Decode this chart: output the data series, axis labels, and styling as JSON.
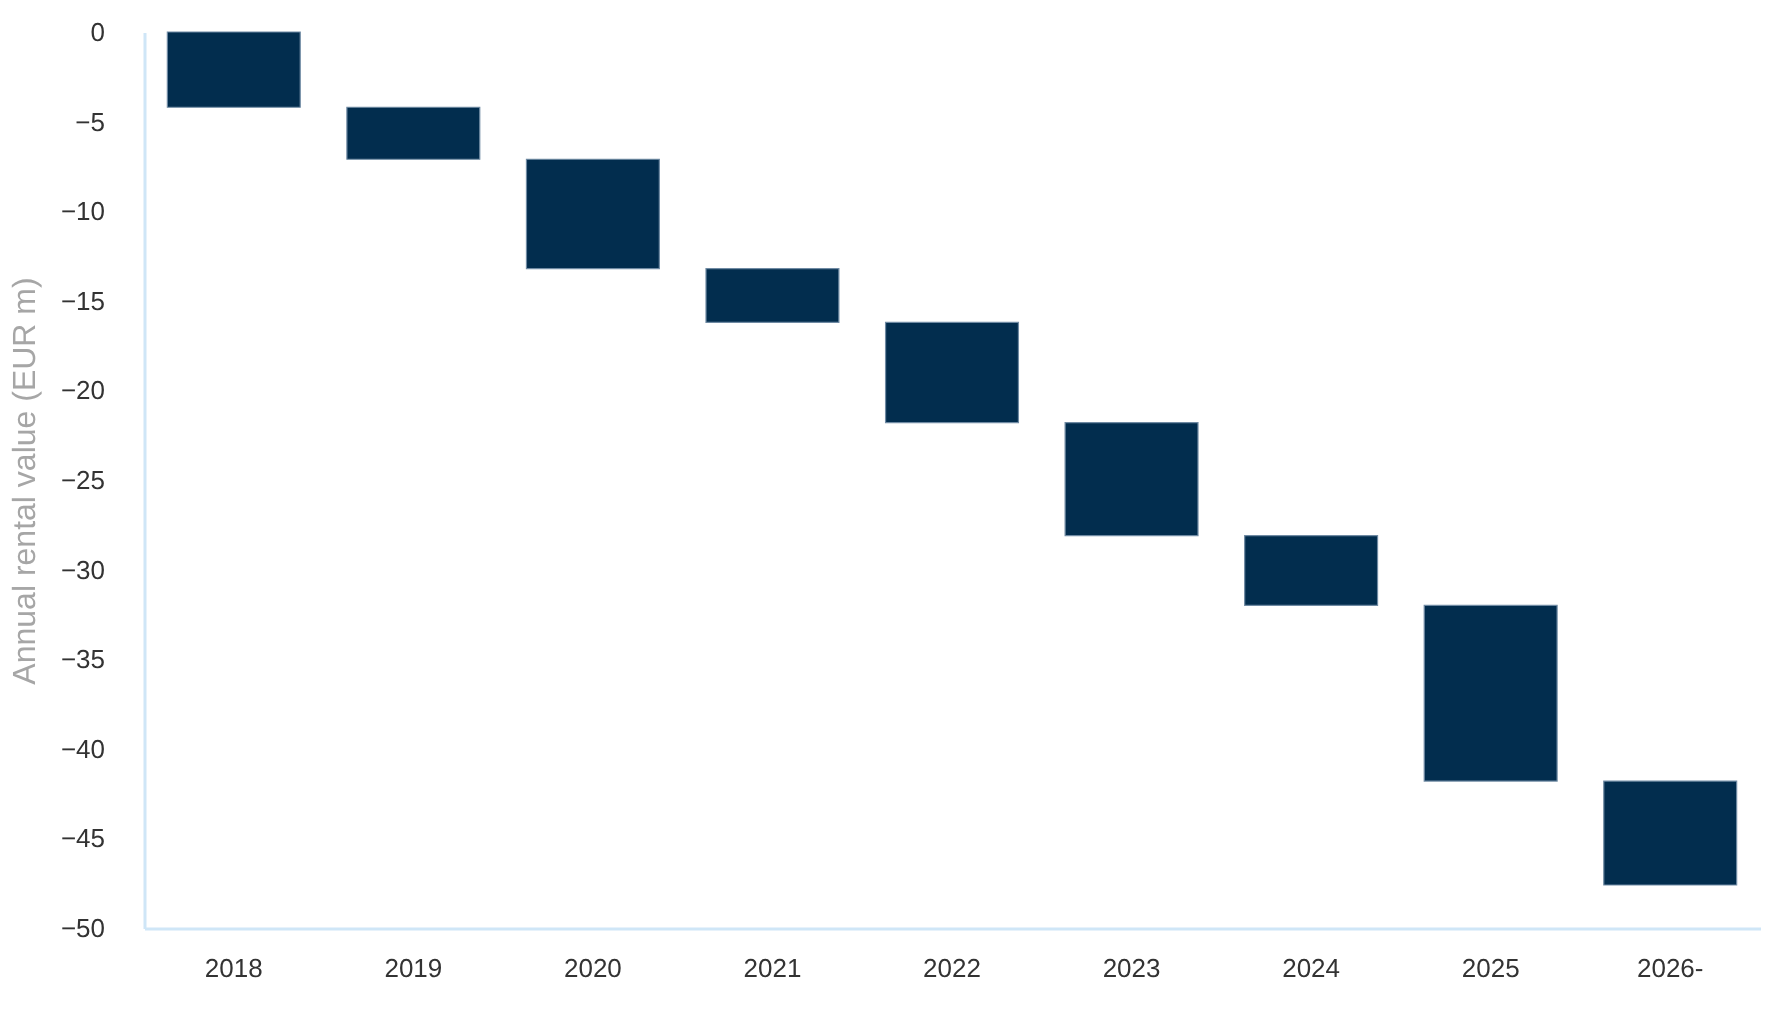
{
  "chart_data": {
    "type": "bar",
    "ylabel": "Annual rental value (EUR m)",
    "categories": [
      "2018",
      "2019",
      "2020",
      "2021",
      "2022",
      "2023",
      "2024",
      "2025",
      "2026-"
    ],
    "base": [
      0,
      -4.2,
      -7.1,
      -13.2,
      -16.2,
      -21.8,
      -28.1,
      -32.0,
      -41.8
    ],
    "values": [
      -4.2,
      -2.9,
      -6.1,
      -3.0,
      -5.6,
      -6.3,
      -3.9,
      -9.8,
      -5.8
    ],
    "color": "#022d4e",
    "ylim": [
      -50,
      0
    ],
    "yticks": [
      0,
      -5,
      -10,
      -15,
      -20,
      -25,
      -30,
      -35,
      -40,
      -45,
      -50
    ],
    "grid": false
  }
}
